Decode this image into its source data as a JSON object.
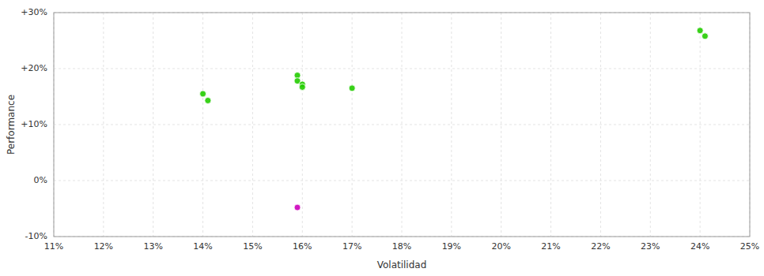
{
  "chart_data": {
    "type": "scatter",
    "xlabel": "Volatilidad",
    "ylabel": "Performance",
    "xlim": [
      0.11,
      0.25
    ],
    "ylim": [
      -0.1,
      0.3
    ],
    "xticks": [
      {
        "value": 0.11,
        "label": "11%"
      },
      {
        "value": 0.12,
        "label": "12%"
      },
      {
        "value": 0.13,
        "label": "13%"
      },
      {
        "value": 0.14,
        "label": "14%"
      },
      {
        "value": 0.15,
        "label": "15%"
      },
      {
        "value": 0.16,
        "label": "16%"
      },
      {
        "value": 0.17,
        "label": "17%"
      },
      {
        "value": 0.18,
        "label": "18%"
      },
      {
        "value": 0.19,
        "label": "19%"
      },
      {
        "value": 0.2,
        "label": "20%"
      },
      {
        "value": 0.21,
        "label": "21%"
      },
      {
        "value": 0.22,
        "label": "22%"
      },
      {
        "value": 0.23,
        "label": "23%"
      },
      {
        "value": 0.24,
        "label": "24%"
      },
      {
        "value": 0.25,
        "label": "25%"
      }
    ],
    "yticks": [
      {
        "value": -0.1,
        "label": "-10%"
      },
      {
        "value": 0.0,
        "label": "0%"
      },
      {
        "value": 0.1,
        "label": "+10%"
      },
      {
        "value": 0.2,
        "label": "+20%"
      },
      {
        "value": 0.3,
        "label": "+30%"
      }
    ],
    "grid": true,
    "series": [
      {
        "color": "#22cc00",
        "x": [
          0.14,
          0.141,
          0.159,
          0.159,
          0.16,
          0.16,
          0.17,
          0.24,
          0.241
        ],
        "values": [
          0.155,
          0.143,
          0.188,
          0.178,
          0.172,
          0.167,
          0.165,
          0.268,
          0.258
        ]
      },
      {
        "color": "#cc00bb",
        "x": [
          0.159
        ],
        "values": [
          -0.048
        ]
      }
    ]
  }
}
